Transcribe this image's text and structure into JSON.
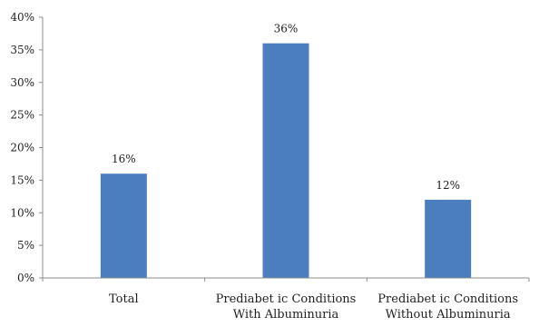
{
  "chart_data": {
    "type": "bar",
    "title": "",
    "xlabel": "",
    "ylabel": "",
    "categories": [
      [
        "Total"
      ],
      [
        "Prediabet ic Conditions",
        "With Albuminuria"
      ],
      [
        "Prediabet ic Conditions",
        "Without Albuminuria"
      ]
    ],
    "values": [
      16,
      36,
      12
    ],
    "data_labels": [
      "16%",
      "36%",
      "12%"
    ],
    "ylim": [
      0,
      40
    ],
    "yticks": [
      0,
      5,
      10,
      15,
      20,
      25,
      30,
      35,
      40
    ],
    "ytick_labels": [
      "0%",
      "5%",
      "10%",
      "15%",
      "20%",
      "25%",
      "30%",
      "35%",
      "40%"
    ],
    "bar_color": "#4a7ebf",
    "axis_color": "#8c8c8c",
    "grid": false,
    "legend": "none"
  }
}
